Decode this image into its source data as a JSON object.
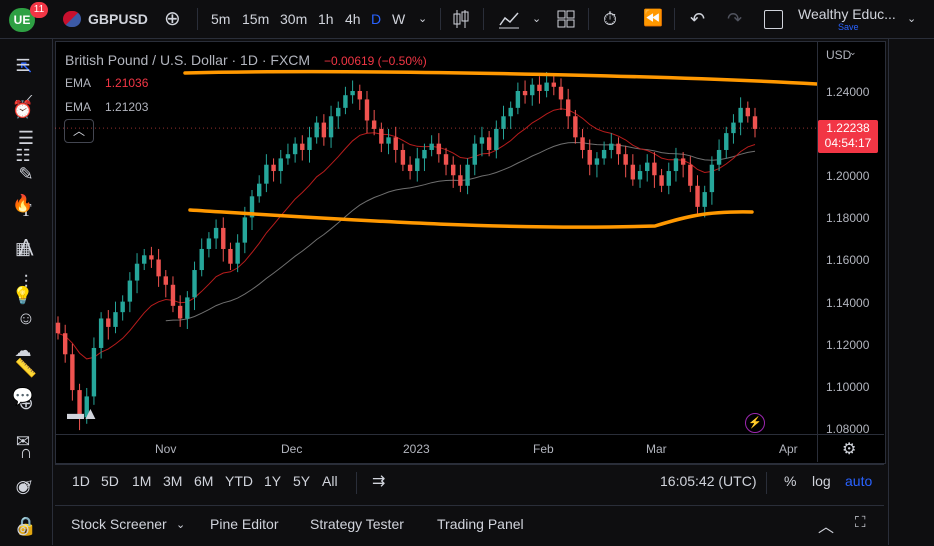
{
  "header": {
    "notification_count": "11",
    "symbol": "GBPUSD",
    "intervals": [
      "5m",
      "15m",
      "30m",
      "1h",
      "4h",
      "D",
      "W"
    ],
    "active_interval": "D",
    "layout_name": "Wealthy Educ...",
    "save_label": "Save"
  },
  "legend": {
    "title": "British Pound / U.S. Dollar · 1D · FXCM",
    "change": "−0.00619 (−0.50%)",
    "ema1_label": "EMA",
    "ema1_value": "1.21036",
    "ema2_label": "EMA",
    "ema2_value": "1.21203"
  },
  "price_axis": {
    "currency": "USD",
    "ticks": [
      "1.24000",
      "1.22000",
      "1.20000",
      "1.18000",
      "1.16000",
      "1.14000",
      "1.12000",
      "1.10000",
      "1.08000"
    ],
    "current_price": "1.22238",
    "countdown": "04:54:17"
  },
  "time_axis": {
    "ticks": [
      "Nov",
      "Dec",
      "2023",
      "Feb",
      "Mar",
      "Apr"
    ]
  },
  "range_bar": {
    "ranges": [
      "1D",
      "5D",
      "1M",
      "3M",
      "6M",
      "YTD",
      "1Y",
      "5Y",
      "All"
    ],
    "clock": "16:05:42 (UTC)",
    "percent": "%",
    "log": "log",
    "auto": "auto"
  },
  "bottom_panel": {
    "tabs": [
      "Stock Screener",
      "Pine Editor",
      "Strategy Tester",
      "Trading Panel"
    ]
  },
  "colors": {
    "up": "#26a69a",
    "down": "#ef5350",
    "annotation": "#ff9800",
    "ema_fast": "#b71c1c",
    "ema_slow": "#9e9e9e",
    "accent": "#2962ff"
  },
  "chart_data": {
    "type": "candlestick",
    "symbol": "GBPUSD",
    "timeframe": "1D",
    "ylim": [
      1.07,
      1.255
    ],
    "closes": [
      1.125,
      1.115,
      1.098,
      1.085,
      1.095,
      1.118,
      1.132,
      1.128,
      1.135,
      1.14,
      1.15,
      1.158,
      1.162,
      1.16,
      1.152,
      1.148,
      1.138,
      1.132,
      1.142,
      1.155,
      1.165,
      1.17,
      1.175,
      1.165,
      1.158,
      1.168,
      1.18,
      1.19,
      1.196,
      1.205,
      1.202,
      1.208,
      1.21,
      1.215,
      1.212,
      1.218,
      1.225,
      1.218,
      1.228,
      1.232,
      1.238,
      1.24,
      1.236,
      1.226,
      1.222,
      1.215,
      1.218,
      1.212,
      1.205,
      1.202,
      1.208,
      1.212,
      1.215,
      1.21,
      1.205,
      1.2,
      1.195,
      1.205,
      1.215,
      1.218,
      1.212,
      1.222,
      1.228,
      1.232,
      1.24,
      1.238,
      1.243,
      1.24,
      1.244,
      1.242,
      1.236,
      1.228,
      1.218,
      1.212,
      1.205,
      1.208,
      1.212,
      1.215,
      1.21,
      1.205,
      1.198,
      1.202,
      1.206,
      1.2,
      1.195,
      1.202,
      1.208,
      1.205,
      1.195,
      1.185,
      1.192,
      1.205,
      1.212,
      1.22,
      1.225,
      1.232,
      1.228,
      1.222
    ]
  }
}
